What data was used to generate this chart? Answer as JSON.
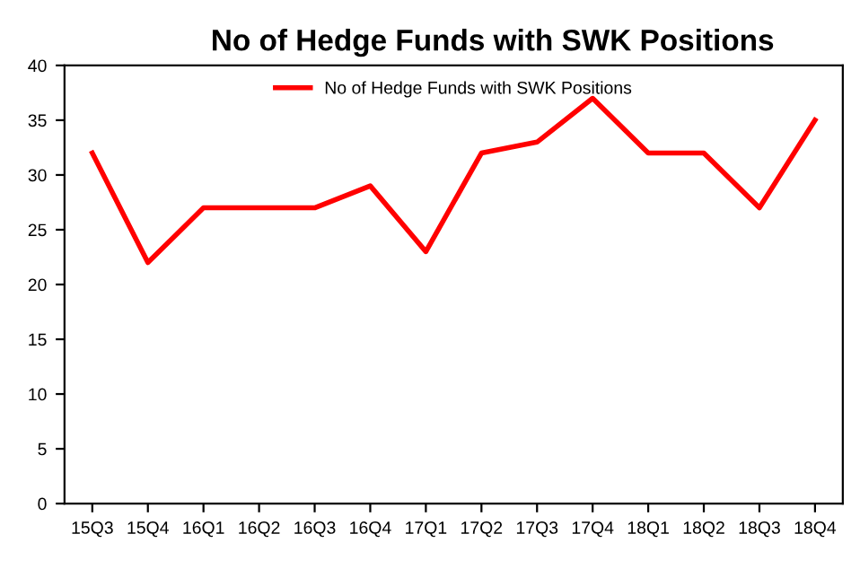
{
  "chart_data": {
    "type": "line",
    "title": "No of Hedge Funds with SWK Positions",
    "categories": [
      "15Q3",
      "15Q4",
      "16Q1",
      "16Q2",
      "16Q3",
      "16Q4",
      "17Q1",
      "17Q2",
      "17Q3",
      "17Q4",
      "18Q1",
      "18Q2",
      "18Q3",
      "18Q4"
    ],
    "series": [
      {
        "name": "No of Hedge Funds with SWK Positions",
        "color": "#ff0000",
        "values": [
          32,
          22,
          27,
          27,
          27,
          29,
          23,
          32,
          33,
          37,
          32,
          32,
          27,
          35
        ]
      }
    ],
    "ylim": [
      0,
      40
    ],
    "yticks": [
      0,
      5,
      10,
      15,
      20,
      25,
      30,
      35,
      40
    ],
    "grid": false,
    "legend": "top",
    "marker": "none",
    "line_style": "solid"
  }
}
